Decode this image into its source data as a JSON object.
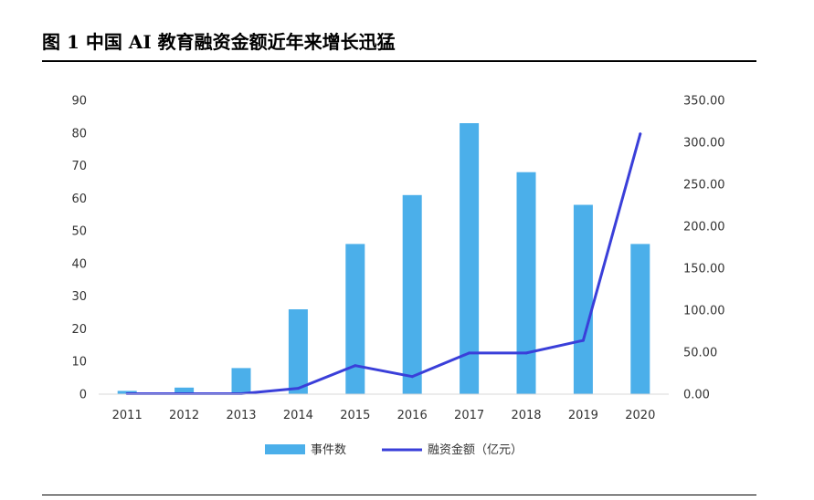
{
  "figure": {
    "title": "图 1 中国 AI 教育融资金额近年来增长迅猛"
  },
  "chart_data": {
    "type": "bar",
    "title": "",
    "categories": [
      "2011",
      "2012",
      "2013",
      "2014",
      "2015",
      "2016",
      "2017",
      "2018",
      "2019",
      "2020"
    ],
    "series": [
      {
        "name": "事件数",
        "type": "bar",
        "axis": "left",
        "color": "#4BAFEA",
        "values": [
          1,
          2,
          8,
          26,
          46,
          61,
          83,
          68,
          58,
          46
        ]
      },
      {
        "name": "融资金额（亿元）",
        "type": "line",
        "axis": "right",
        "color": "#3A3FD9",
        "values": [
          0.5,
          0.5,
          0.5,
          7,
          34,
          21,
          49,
          49,
          64,
          310
        ]
      }
    ],
    "y_left": {
      "ylim": [
        0,
        90
      ],
      "ticks": [
        "0",
        "10",
        "20",
        "30",
        "40",
        "50",
        "60",
        "70",
        "80",
        "90"
      ]
    },
    "y_right": {
      "ylim": [
        0,
        350
      ],
      "ticks": [
        "0.00",
        "50.00",
        "100.00",
        "150.00",
        "200.00",
        "250.00",
        "300.00",
        "350.00"
      ]
    },
    "grid": false,
    "legend": "bottom"
  }
}
